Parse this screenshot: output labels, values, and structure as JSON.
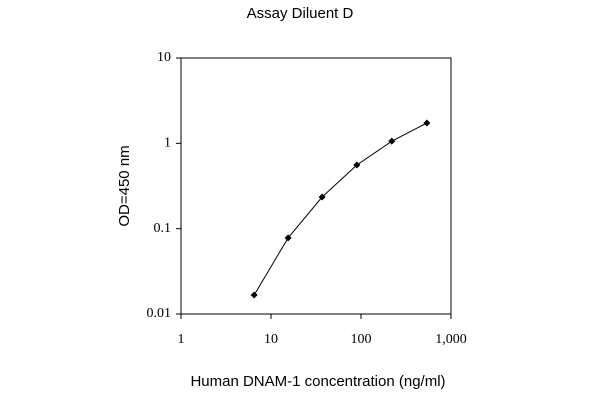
{
  "chart_data": {
    "type": "line",
    "title": "Assay Diluent D",
    "x_label": "Human DNAM-1 concentration (ng/ml)",
    "y_label": "OD=450 nm",
    "x": [
      6.5,
      15.5,
      37,
      90,
      220,
      540
    ],
    "values": [
      0.0167,
      0.078,
      0.235,
      0.557,
      1.06,
      1.73
    ],
    "color": "#000000",
    "x_log": true,
    "y_log": true,
    "xlim": [
      1,
      1000
    ],
    "ylim": [
      0.01,
      10
    ],
    "xticks": [
      1,
      10,
      100,
      {
        "value": 1000,
        "label": "1,000"
      }
    ],
    "yticks": [
      0.01,
      0.1,
      1,
      10
    ]
  }
}
